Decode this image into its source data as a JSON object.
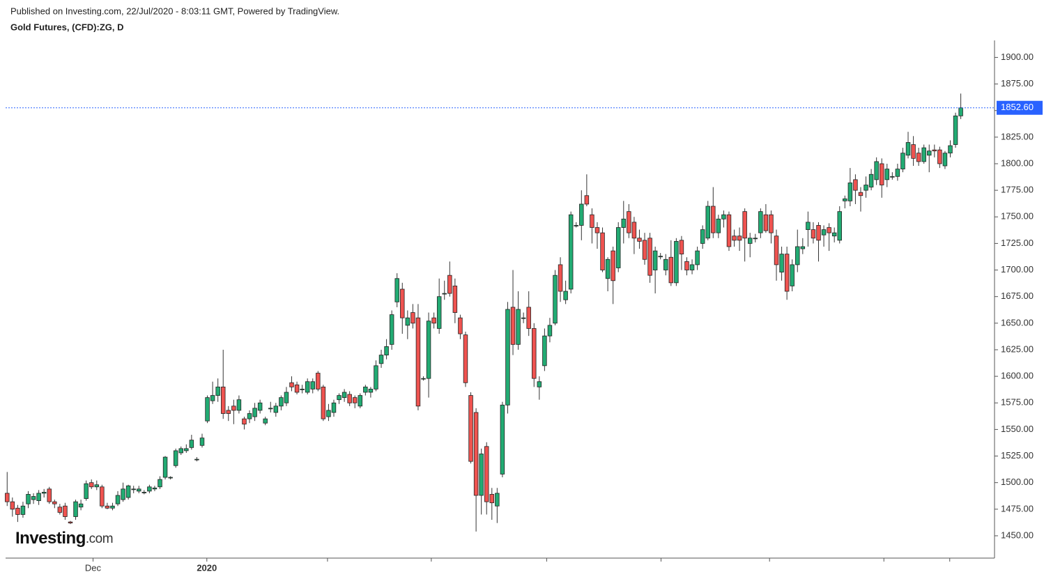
{
  "header": {
    "published": "Published on Investing.com, 22/Jul/2020 - 8:03:11 GMT, Powered by TradingView.",
    "symbol": "Gold Futures, (CFD):ZG, D"
  },
  "logo": {
    "name": "Investing",
    "suffix": ".com"
  },
  "chart_data": {
    "type": "candlestick",
    "up_color": "#22ab73",
    "down_color": "#ef5350",
    "ylim": [
      1429,
      1916
    ],
    "yticks": [
      {
        "value": 1450,
        "label": "1450.00"
      },
      {
        "value": 1475,
        "label": "1475.00"
      },
      {
        "value": 1500,
        "label": "1500.00"
      },
      {
        "value": 1525,
        "label": "1525.00"
      },
      {
        "value": 1550,
        "label": "1550.00"
      },
      {
        "value": 1575,
        "label": "1575.00"
      },
      {
        "value": 1600,
        "label": "1600.00"
      },
      {
        "value": 1625,
        "label": "1625.00"
      },
      {
        "value": 1650,
        "label": "1650.00"
      },
      {
        "value": 1675,
        "label": "1675.00"
      },
      {
        "value": 1700,
        "label": "1700.00"
      },
      {
        "value": 1725,
        "label": "1725.00"
      },
      {
        "value": 1750,
        "label": "1750.00"
      },
      {
        "value": 1775,
        "label": "1775.00"
      },
      {
        "value": 1800,
        "label": "1800.00"
      },
      {
        "value": 1825,
        "label": "1825.00"
      },
      {
        "value": 1850,
        "label": "1850.00"
      },
      {
        "value": 1875,
        "label": "1875.00"
      },
      {
        "value": 1900,
        "label": "1900.00"
      }
    ],
    "xlim": [
      -0.3,
      187.4
    ],
    "xticks": [
      {
        "value": 16.3,
        "label": "Dec"
      },
      {
        "value": 37.9,
        "label": "2020"
      }
    ],
    "xticks_unlabeled": [
      60.8,
      80.5,
      102.4,
      124.1,
      144.7,
      166.4,
      178.9
    ],
    "last_price": {
      "value": 1852.6,
      "label": "1852.60",
      "color": "#2962ff"
    },
    "ohlc": [
      [
        1490,
        1510,
        1478,
        1482
      ],
      [
        1482,
        1486,
        1468,
        1475
      ],
      [
        1476,
        1479,
        1463,
        1470
      ],
      [
        1470,
        1482,
        1467,
        1478
      ],
      [
        1480,
        1492,
        1476,
        1489
      ],
      [
        1484,
        1490,
        1480,
        1487
      ],
      [
        1483,
        1493,
        1479,
        1490
      ],
      [
        1490,
        1494,
        1486,
        1491
      ],
      [
        1494,
        1496,
        1480,
        1482
      ],
      [
        1482,
        1484,
        1476,
        1480
      ],
      [
        1477,
        1480,
        1470,
        1472
      ],
      [
        1478,
        1481,
        1465,
        1468
      ],
      [
        1463,
        1464,
        1461,
        1462
      ],
      [
        1468,
        1484,
        1465,
        1482
      ],
      [
        1477,
        1484,
        1474,
        1480
      ],
      [
        1485,
        1502,
        1483,
        1499
      ],
      [
        1500,
        1503,
        1494,
        1496
      ],
      [
        1496,
        1502,
        1493,
        1498
      ],
      [
        1496,
        1498,
        1476,
        1478
      ],
      [
        1478,
        1481,
        1475,
        1476
      ],
      [
        1476,
        1481,
        1474,
        1478
      ],
      [
        1480,
        1492,
        1478,
        1488
      ],
      [
        1484,
        1500,
        1482,
        1494
      ],
      [
        1486,
        1498,
        1484,
        1497
      ],
      [
        1494,
        1497,
        1490,
        1494
      ],
      [
        1492,
        1497,
        1490,
        1494
      ],
      [
        1491,
        1493,
        1489,
        1491
      ],
      [
        1492,
        1498,
        1490,
        1496
      ],
      [
        1494,
        1497,
        1492,
        1495
      ],
      [
        1496,
        1506,
        1494,
        1503
      ],
      [
        1505,
        1525,
        1503,
        1524
      ],
      [
        1505,
        1506,
        1503,
        1505
      ],
      [
        1516,
        1532,
        1514,
        1530
      ],
      [
        1528,
        1534,
        1526,
        1532
      ],
      [
        1530,
        1536,
        1528,
        1532
      ],
      [
        1533,
        1545,
        1531,
        1540
      ],
      [
        1522,
        1524,
        1520,
        1522
      ],
      [
        1535,
        1546,
        1533,
        1542
      ],
      [
        1558,
        1582,
        1556,
        1580
      ],
      [
        1577,
        1595,
        1574,
        1582
      ],
      [
        1582,
        1598,
        1576,
        1590
      ],
      [
        1590,
        1625,
        1560,
        1565
      ],
      [
        1568,
        1572,
        1558,
        1565
      ],
      [
        1572,
        1578,
        1555,
        1568
      ],
      [
        1568,
        1582,
        1565,
        1578
      ],
      [
        1560,
        1562,
        1550,
        1555
      ],
      [
        1560,
        1568,
        1556,
        1565
      ],
      [
        1562,
        1575,
        1558,
        1570
      ],
      [
        1568,
        1578,
        1565,
        1575
      ],
      [
        1556,
        1562,
        1554,
        1560
      ],
      [
        1570,
        1576,
        1566,
        1570
      ],
      [
        1566,
        1575,
        1562,
        1572
      ],
      [
        1572,
        1582,
        1568,
        1580
      ],
      [
        1575,
        1590,
        1572,
        1585
      ],
      [
        1594,
        1600,
        1586,
        1590
      ],
      [
        1592,
        1595,
        1583,
        1585
      ],
      [
        1588,
        1592,
        1584,
        1588
      ],
      [
        1585,
        1598,
        1583,
        1595
      ],
      [
        1588,
        1598,
        1584,
        1595
      ],
      [
        1603,
        1605,
        1586,
        1588
      ],
      [
        1590,
        1592,
        1558,
        1560
      ],
      [
        1562,
        1574,
        1558,
        1568
      ],
      [
        1566,
        1578,
        1562,
        1575
      ],
      [
        1578,
        1584,
        1574,
        1582
      ],
      [
        1580,
        1588,
        1576,
        1585
      ],
      [
        1583,
        1586,
        1572,
        1575
      ],
      [
        1580,
        1582,
        1570,
        1575
      ],
      [
        1572,
        1584,
        1570,
        1582
      ],
      [
        1585,
        1592,
        1582,
        1590
      ],
      [
        1585,
        1590,
        1580,
        1588
      ],
      [
        1588,
        1615,
        1586,
        1610
      ],
      [
        1612,
        1625,
        1608,
        1620
      ],
      [
        1620,
        1635,
        1616,
        1628
      ],
      [
        1630,
        1662,
        1625,
        1658
      ],
      [
        1670,
        1697,
        1665,
        1692
      ],
      [
        1682,
        1688,
        1640,
        1655
      ],
      [
        1648,
        1662,
        1635,
        1655
      ],
      [
        1660,
        1668,
        1645,
        1650
      ],
      [
        1655,
        1668,
        1568,
        1572
      ],
      [
        1598,
        1600,
        1596,
        1598
      ],
      [
        1598,
        1660,
        1580,
        1652
      ],
      [
        1655,
        1660,
        1645,
        1650
      ],
      [
        1645,
        1692,
        1640,
        1675
      ],
      [
        1678,
        1690,
        1672,
        1678
      ],
      [
        1695,
        1708,
        1675,
        1678
      ],
      [
        1685,
        1692,
        1650,
        1660
      ],
      [
        1655,
        1658,
        1635,
        1640
      ],
      [
        1639,
        1642,
        1590,
        1594
      ],
      [
        1582,
        1585,
        1518,
        1520
      ],
      [
        1566,
        1570,
        1454,
        1488
      ],
      [
        1488,
        1532,
        1470,
        1527
      ],
      [
        1534,
        1538,
        1470,
        1482
      ],
      [
        1489,
        1495,
        1465,
        1481
      ],
      [
        1478,
        1495,
        1462,
        1490
      ],
      [
        1508,
        1576,
        1505,
        1573
      ],
      [
        1573,
        1670,
        1565,
        1663
      ],
      [
        1665,
        1700,
        1620,
        1630
      ],
      [
        1630,
        1680,
        1625,
        1663
      ],
      [
        1655,
        1660,
        1650,
        1655
      ],
      [
        1665,
        1680,
        1638,
        1645
      ],
      [
        1645,
        1650,
        1590,
        1598
      ],
      [
        1590,
        1600,
        1578,
        1595
      ],
      [
        1610,
        1645,
        1605,
        1638
      ],
      [
        1638,
        1655,
        1632,
        1648
      ],
      [
        1650,
        1700,
        1648,
        1695
      ],
      [
        1705,
        1712,
        1670,
        1680
      ],
      [
        1672,
        1690,
        1668,
        1680
      ],
      [
        1682,
        1755,
        1678,
        1752
      ],
      [
        1742,
        1745,
        1740,
        1742
      ],
      [
        1742,
        1775,
        1728,
        1762
      ],
      [
        1770,
        1790,
        1760,
        1762
      ],
      [
        1752,
        1758,
        1725,
        1740
      ],
      [
        1740,
        1745,
        1720,
        1735
      ],
      [
        1735,
        1740,
        1698,
        1700
      ],
      [
        1692,
        1712,
        1680,
        1710
      ],
      [
        1718,
        1722,
        1668,
        1690
      ],
      [
        1702,
        1745,
        1698,
        1740
      ],
      [
        1740,
        1765,
        1725,
        1748
      ],
      [
        1755,
        1762,
        1730,
        1735
      ],
      [
        1745,
        1750,
        1715,
        1730
      ],
      [
        1730,
        1738,
        1720,
        1727
      ],
      [
        1728,
        1735,
        1705,
        1710
      ],
      [
        1730,
        1735,
        1688,
        1695
      ],
      [
        1700,
        1722,
        1678,
        1718
      ],
      [
        1713,
        1716,
        1710,
        1713
      ],
      [
        1700,
        1715,
        1695,
        1710
      ],
      [
        1712,
        1728,
        1685,
        1688
      ],
      [
        1688,
        1730,
        1685,
        1727
      ],
      [
        1728,
        1732,
        1700,
        1715
      ],
      [
        1708,
        1712,
        1695,
        1700
      ],
      [
        1700,
        1710,
        1696,
        1705
      ],
      [
        1705,
        1722,
        1700,
        1718
      ],
      [
        1725,
        1742,
        1720,
        1738
      ],
      [
        1730,
        1765,
        1728,
        1760
      ],
      [
        1760,
        1778,
        1730,
        1735
      ],
      [
        1735,
        1752,
        1730,
        1748
      ],
      [
        1748,
        1756,
        1740,
        1752
      ],
      [
        1752,
        1755,
        1718,
        1722
      ],
      [
        1732,
        1738,
        1722,
        1728
      ],
      [
        1732,
        1740,
        1718,
        1728
      ],
      [
        1755,
        1758,
        1708,
        1730
      ],
      [
        1725,
        1735,
        1712,
        1730
      ],
      [
        1730,
        1734,
        1726,
        1730
      ],
      [
        1735,
        1758,
        1730,
        1755
      ],
      [
        1752,
        1762,
        1735,
        1737
      ],
      [
        1752,
        1756,
        1725,
        1735
      ],
      [
        1732,
        1738,
        1690,
        1705
      ],
      [
        1698,
        1722,
        1690,
        1715
      ],
      [
        1715,
        1722,
        1672,
        1680
      ],
      [
        1685,
        1710,
        1680,
        1705
      ],
      [
        1705,
        1738,
        1698,
        1722
      ],
      [
        1720,
        1730,
        1715,
        1722
      ],
      [
        1738,
        1755,
        1722,
        1745
      ],
      [
        1738,
        1745,
        1725,
        1730
      ],
      [
        1742,
        1745,
        1708,
        1728
      ],
      [
        1733,
        1742,
        1722,
        1738
      ],
      [
        1740,
        1744,
        1718,
        1735
      ],
      [
        1732,
        1740,
        1726,
        1735
      ],
      [
        1728,
        1760,
        1725,
        1755
      ],
      [
        1765,
        1770,
        1758,
        1767
      ],
      [
        1765,
        1796,
        1760,
        1782
      ],
      [
        1785,
        1790,
        1762,
        1775
      ],
      [
        1773,
        1778,
        1755,
        1770
      ],
      [
        1775,
        1788,
        1768,
        1780
      ],
      [
        1778,
        1795,
        1775,
        1790
      ],
      [
        1785,
        1806,
        1780,
        1802
      ],
      [
        1800,
        1805,
        1768,
        1780
      ],
      [
        1785,
        1800,
        1778,
        1795
      ],
      [
        1788,
        1792,
        1785,
        1788
      ],
      [
        1788,
        1800,
        1784,
        1795
      ],
      [
        1795,
        1815,
        1792,
        1810
      ],
      [
        1808,
        1830,
        1805,
        1820
      ],
      [
        1818,
        1826,
        1798,
        1805
      ],
      [
        1810,
        1815,
        1798,
        1802
      ],
      [
        1802,
        1818,
        1800,
        1815
      ],
      [
        1808,
        1818,
        1792,
        1812
      ],
      [
        1813,
        1818,
        1806,
        1812
      ],
      [
        1813,
        1816,
        1796,
        1800
      ],
      [
        1798,
        1812,
        1795,
        1810
      ],
      [
        1810,
        1822,
        1806,
        1817
      ],
      [
        1818,
        1848,
        1815,
        1845
      ],
      [
        1845,
        1866,
        1842,
        1852.6
      ]
    ]
  }
}
